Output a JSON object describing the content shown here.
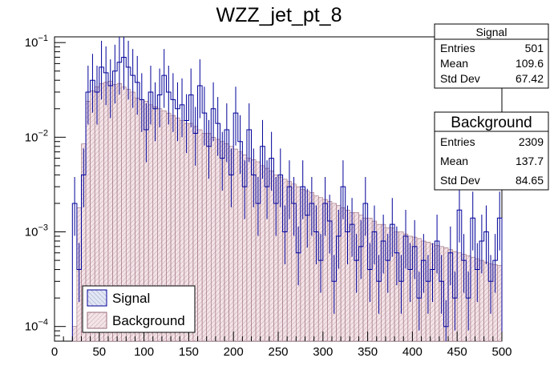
{
  "chart_data": {
    "type": "histogram",
    "title": "WZZ_jet_pt_8",
    "xlabel": "",
    "ylabel": "",
    "xlim": [
      0,
      500
    ],
    "ylim": [
      7e-05,
      0.115
    ],
    "yscale": "log",
    "bin_width": 5,
    "x_ticks": [
      0,
      50,
      100,
      150,
      200,
      250,
      300,
      350,
      400,
      450,
      500
    ],
    "x_tick_labels": [
      "0",
      "50",
      "100",
      "150",
      "200",
      "250",
      "300",
      "350",
      "400",
      "450",
      "500"
    ],
    "y_tick_labels": [
      {
        "value": 0.1,
        "base": "10",
        "exp": "−1"
      },
      {
        "value": 0.01,
        "base": "10",
        "exp": "−2"
      },
      {
        "value": 0.001,
        "base": "10",
        "exp": "−3"
      },
      {
        "value": 0.0001,
        "base": "10",
        "exp": "−4"
      }
    ],
    "series": [
      {
        "name": "Background",
        "bin_low_edges": [
          20,
          25,
          30,
          35,
          40,
          45,
          50,
          55,
          60,
          65,
          70,
          75,
          80,
          85,
          90,
          95,
          100,
          105,
          110,
          115,
          120,
          125,
          130,
          135,
          140,
          145,
          150,
          155,
          160,
          165,
          170,
          175,
          180,
          185,
          190,
          195,
          200,
          205,
          210,
          215,
          220,
          225,
          230,
          235,
          240,
          245,
          250,
          255,
          260,
          265,
          270,
          275,
          280,
          285,
          290,
          295,
          300,
          305,
          310,
          315,
          320,
          325,
          330,
          335,
          340,
          345,
          350,
          355,
          360,
          365,
          370,
          375,
          380,
          385,
          390,
          395,
          400,
          405,
          410,
          415,
          420,
          425,
          430,
          435,
          440,
          445,
          450,
          455,
          460,
          465,
          470,
          475,
          480,
          485,
          490,
          495
        ],
        "values": [
          0.0001,
          0.0018,
          0.0085,
          0.024,
          0.031,
          0.034,
          0.037,
          0.038,
          0.039,
          0.036,
          0.037,
          0.034,
          0.032,
          0.03,
          0.026,
          0.025,
          0.024,
          0.022,
          0.021,
          0.02,
          0.019,
          0.018,
          0.017,
          0.016,
          0.015,
          0.014,
          0.014,
          0.013,
          0.012,
          0.011,
          0.011,
          0.01,
          0.0095,
          0.009,
          0.0085,
          0.008,
          0.0075,
          0.007,
          0.0065,
          0.006,
          0.0058,
          0.0055,
          0.005,
          0.0047,
          0.0044,
          0.004,
          0.0038,
          0.0036,
          0.0034,
          0.0032,
          0.003,
          0.0028,
          0.0027,
          0.0026,
          0.0024,
          0.0023,
          0.0022,
          0.0021,
          0.002,
          0.0019,
          0.0018,
          0.0017,
          0.0016,
          0.0016,
          0.0015,
          0.0014,
          0.0014,
          0.0013,
          0.0012,
          0.0012,
          0.0011,
          0.0011,
          0.001,
          0.001,
          0.00095,
          0.0009,
          0.00088,
          0.00085,
          0.0008,
          0.00078,
          0.00075,
          0.00072,
          0.0007,
          0.00068,
          0.00065,
          0.00062,
          0.0006,
          0.00058,
          0.00056,
          0.00054,
          0.00052,
          0.0005,
          0.00048,
          0.00046,
          0.00045,
          0.00044
        ],
        "stats": {
          "Entries": "2309",
          "Mean": "137.7",
          "Std Dev": "84.65"
        }
      },
      {
        "name": "Signal",
        "bin_low_edges": [
          20,
          25,
          30,
          35,
          40,
          45,
          50,
          55,
          60,
          65,
          70,
          75,
          80,
          85,
          90,
          95,
          100,
          105,
          110,
          115,
          120,
          125,
          130,
          135,
          140,
          145,
          150,
          155,
          160,
          165,
          170,
          175,
          180,
          185,
          190,
          195,
          200,
          205,
          210,
          215,
          220,
          225,
          230,
          235,
          240,
          245,
          250,
          255,
          260,
          265,
          270,
          275,
          280,
          285,
          290,
          295,
          300,
          305,
          310,
          315,
          320,
          325,
          330,
          335,
          340,
          345,
          350,
          355,
          360,
          365,
          370,
          375,
          380,
          385,
          390,
          395,
          400,
          405,
          410,
          415,
          420,
          425,
          430,
          435,
          440,
          445,
          450,
          455,
          460,
          465,
          470,
          475,
          480,
          485,
          490,
          495
        ],
        "values": [
          0.002,
          0.0004,
          0.004,
          0.03,
          0.04,
          0.03,
          0.055,
          0.048,
          0.035,
          0.05,
          0.062,
          0.07,
          0.055,
          0.045,
          0.038,
          0.025,
          0.012,
          0.03,
          0.02,
          0.028,
          0.045,
          0.03,
          0.025,
          0.02,
          0.022,
          0.015,
          0.028,
          0.011,
          0.035,
          0.018,
          0.008,
          0.02,
          0.014,
          0.006,
          0.012,
          0.004,
          0.018,
          0.009,
          0.003,
          0.012,
          0.004,
          0.002,
          0.008,
          0.003,
          0.006,
          0.002,
          0.004,
          0.001,
          0.003,
          0.002,
          0.0006,
          0.003,
          0.0015,
          0.002,
          0.001,
          0.0005,
          0.002,
          0.0013,
          0.0003,
          0.0009,
          0.003,
          0.001,
          0.0012,
          0.0005,
          0.0007,
          0.002,
          0.0004,
          0.001,
          0.0003,
          0.0008,
          0.0005,
          0.0012,
          0.0006,
          0.0003,
          0.0009,
          0.0004,
          0.0007,
          0.0002,
          0.0005,
          0.0003,
          0.0004,
          0.0008,
          0.0003,
          0.0001,
          0.0006,
          0.0002,
          0.0017,
          0.0005,
          0.0002,
          0.0014,
          0.0004,
          0.0008,
          0.001,
          0.0003,
          0.0005,
          0.0014
        ],
        "stats": {
          "Entries": "501",
          "Mean": "109.6",
          "Std Dev": "67.42"
        }
      }
    ],
    "legend": {
      "position": "bottom-left",
      "entries": [
        "Signal",
        "Background"
      ]
    }
  },
  "colors": {
    "signal_line": "#000099",
    "signal_fill": "#dde3f2",
    "background_line": "#996b7a",
    "background_fill": "#f0e0e4",
    "axis": "#000000"
  }
}
